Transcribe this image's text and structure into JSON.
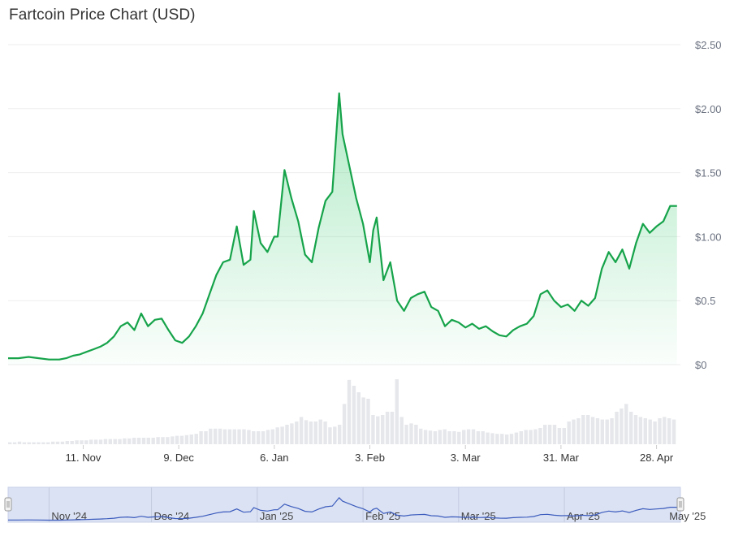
{
  "title": "Fartcoin Price Chart (USD)",
  "colors": {
    "line": "#16a34a",
    "area_top": "#22c55e",
    "volume": "#e5e7eb",
    "navigator_fill": "#dbe2f3",
    "navigator_line": "#3b5bbd",
    "grid": "#eeeeee"
  },
  "chart_data": {
    "type": "area",
    "title": "Fartcoin Price Chart (USD)",
    "y_ticks": [
      "$0",
      "$0.5",
      "$1.00",
      "$1.50",
      "$2.00",
      "$2.50"
    ],
    "ylim": [
      0,
      2.5
    ],
    "x_ticks": [
      "11. Nov",
      "9. Dec",
      "6. Jan",
      "3. Feb",
      "3. Mar",
      "31. Mar",
      "28. Apr"
    ],
    "x_range": [
      "2024-10-20",
      "2025-05-05"
    ],
    "grid": true,
    "series": [
      {
        "points": [
          [
            "2024-10-20",
            0.05
          ],
          [
            "2024-10-23",
            0.05
          ],
          [
            "2024-10-26",
            0.06
          ],
          [
            "2024-10-29",
            0.05
          ],
          [
            "2024-11-01",
            0.04
          ],
          [
            "2024-11-04",
            0.04
          ],
          [
            "2024-11-06",
            0.05
          ],
          [
            "2024-11-08",
            0.07
          ],
          [
            "2024-11-10",
            0.08
          ],
          [
            "2024-11-12",
            0.1
          ],
          [
            "2024-11-14",
            0.12
          ],
          [
            "2024-11-16",
            0.14
          ],
          [
            "2024-11-18",
            0.17
          ],
          [
            "2024-11-20",
            0.22
          ],
          [
            "2024-11-22",
            0.3
          ],
          [
            "2024-11-24",
            0.33
          ],
          [
            "2024-11-26",
            0.27
          ],
          [
            "2024-11-28",
            0.4
          ],
          [
            "2024-11-30",
            0.3
          ],
          [
            "2024-12-02",
            0.35
          ],
          [
            "2024-12-04",
            0.36
          ],
          [
            "2024-12-06",
            0.27
          ],
          [
            "2024-12-08",
            0.19
          ],
          [
            "2024-12-10",
            0.17
          ],
          [
            "2024-12-12",
            0.22
          ],
          [
            "2024-12-14",
            0.3
          ],
          [
            "2024-12-16",
            0.4
          ],
          [
            "2024-12-18",
            0.55
          ],
          [
            "2024-12-20",
            0.7
          ],
          [
            "2024-12-22",
            0.8
          ],
          [
            "2024-12-24",
            0.82
          ],
          [
            "2024-12-26",
            1.08
          ],
          [
            "2024-12-28",
            0.78
          ],
          [
            "2024-12-30",
            0.82
          ],
          [
            "2024-12-31",
            1.2
          ],
          [
            "2025-01-02",
            0.95
          ],
          [
            "2025-01-04",
            0.88
          ],
          [
            "2025-01-06",
            1.0
          ],
          [
            "2025-01-07",
            1.0
          ],
          [
            "2025-01-09",
            1.52
          ],
          [
            "2025-01-11",
            1.3
          ],
          [
            "2025-01-13",
            1.12
          ],
          [
            "2025-01-15",
            0.86
          ],
          [
            "2025-01-17",
            0.8
          ],
          [
            "2025-01-19",
            1.07
          ],
          [
            "2025-01-21",
            1.28
          ],
          [
            "2025-01-23",
            1.35
          ],
          [
            "2025-01-25",
            2.12
          ],
          [
            "2025-01-26",
            1.8
          ],
          [
            "2025-01-28",
            1.55
          ],
          [
            "2025-01-30",
            1.3
          ],
          [
            "2025-02-01",
            1.1
          ],
          [
            "2025-02-03",
            0.8
          ],
          [
            "2025-02-04",
            1.05
          ],
          [
            "2025-02-05",
            1.15
          ],
          [
            "2025-02-07",
            0.66
          ],
          [
            "2025-02-09",
            0.8
          ],
          [
            "2025-02-11",
            0.5
          ],
          [
            "2025-02-13",
            0.42
          ],
          [
            "2025-02-15",
            0.52
          ],
          [
            "2025-02-17",
            0.55
          ],
          [
            "2025-02-19",
            0.57
          ],
          [
            "2025-02-21",
            0.45
          ],
          [
            "2025-02-23",
            0.42
          ],
          [
            "2025-02-25",
            0.3
          ],
          [
            "2025-02-27",
            0.35
          ],
          [
            "2025-03-01",
            0.33
          ],
          [
            "2025-03-03",
            0.29
          ],
          [
            "2025-03-05",
            0.32
          ],
          [
            "2025-03-07",
            0.28
          ],
          [
            "2025-03-09",
            0.3
          ],
          [
            "2025-03-11",
            0.26
          ],
          [
            "2025-03-13",
            0.23
          ],
          [
            "2025-03-15",
            0.22
          ],
          [
            "2025-03-17",
            0.27
          ],
          [
            "2025-03-19",
            0.3
          ],
          [
            "2025-03-21",
            0.32
          ],
          [
            "2025-03-23",
            0.38
          ],
          [
            "2025-03-25",
            0.55
          ],
          [
            "2025-03-27",
            0.58
          ],
          [
            "2025-03-29",
            0.5
          ],
          [
            "2025-03-31",
            0.45
          ],
          [
            "2025-04-02",
            0.47
          ],
          [
            "2025-04-04",
            0.42
          ],
          [
            "2025-04-06",
            0.5
          ],
          [
            "2025-04-08",
            0.46
          ],
          [
            "2025-04-10",
            0.52
          ],
          [
            "2025-04-12",
            0.75
          ],
          [
            "2025-04-14",
            0.88
          ],
          [
            "2025-04-16",
            0.8
          ],
          [
            "2025-04-18",
            0.9
          ],
          [
            "2025-04-20",
            0.75
          ],
          [
            "2025-04-22",
            0.95
          ],
          [
            "2025-04-24",
            1.1
          ],
          [
            "2025-04-26",
            1.03
          ],
          [
            "2025-04-28",
            1.08
          ],
          [
            "2025-04-30",
            1.12
          ],
          [
            "2025-05-02",
            1.24
          ],
          [
            "2025-05-04",
            1.24
          ]
        ]
      }
    ],
    "volume": {
      "note_scale": "relative",
      "values": [
        0.03,
        0.03,
        0.04,
        0.03,
        0.03,
        0.03,
        0.03,
        0.03,
        0.03,
        0.04,
        0.04,
        0.04,
        0.05,
        0.05,
        0.06,
        0.06,
        0.06,
        0.07,
        0.07,
        0.07,
        0.08,
        0.08,
        0.08,
        0.08,
        0.09,
        0.09,
        0.1,
        0.1,
        0.1,
        0.1,
        0.1,
        0.11,
        0.11,
        0.11,
        0.12,
        0.13,
        0.13,
        0.14,
        0.15,
        0.16,
        0.2,
        0.2,
        0.24,
        0.24,
        0.24,
        0.23,
        0.23,
        0.23,
        0.23,
        0.23,
        0.22,
        0.2,
        0.2,
        0.2,
        0.22,
        0.23,
        0.26,
        0.27,
        0.3,
        0.32,
        0.35,
        0.42,
        0.37,
        0.35,
        0.35,
        0.38,
        0.35,
        0.26,
        0.27,
        0.3,
        0.62,
        0.99,
        0.9,
        0.8,
        0.72,
        0.7,
        0.45,
        0.43,
        0.45,
        0.5,
        0.5,
        1.0,
        0.42,
        0.3,
        0.32,
        0.3,
        0.24,
        0.22,
        0.21,
        0.2,
        0.22,
        0.23,
        0.2,
        0.2,
        0.19,
        0.22,
        0.23,
        0.23,
        0.2,
        0.2,
        0.18,
        0.17,
        0.16,
        0.16,
        0.15,
        0.16,
        0.18,
        0.2,
        0.22,
        0.22,
        0.23,
        0.25,
        0.3,
        0.3,
        0.3,
        0.25,
        0.25,
        0.35,
        0.38,
        0.4,
        0.45,
        0.45,
        0.42,
        0.4,
        0.38,
        0.38,
        0.4,
        0.5,
        0.55,
        0.62,
        0.5,
        0.45,
        0.42,
        0.4,
        0.38,
        0.35,
        0.4,
        0.42,
        0.4,
        0.38
      ]
    }
  },
  "navigator": {
    "labels": [
      "Nov '24",
      "Dec '24",
      "Jan '25",
      "Feb '25",
      "Mar '25",
      "Apr '25",
      "May '25"
    ]
  }
}
